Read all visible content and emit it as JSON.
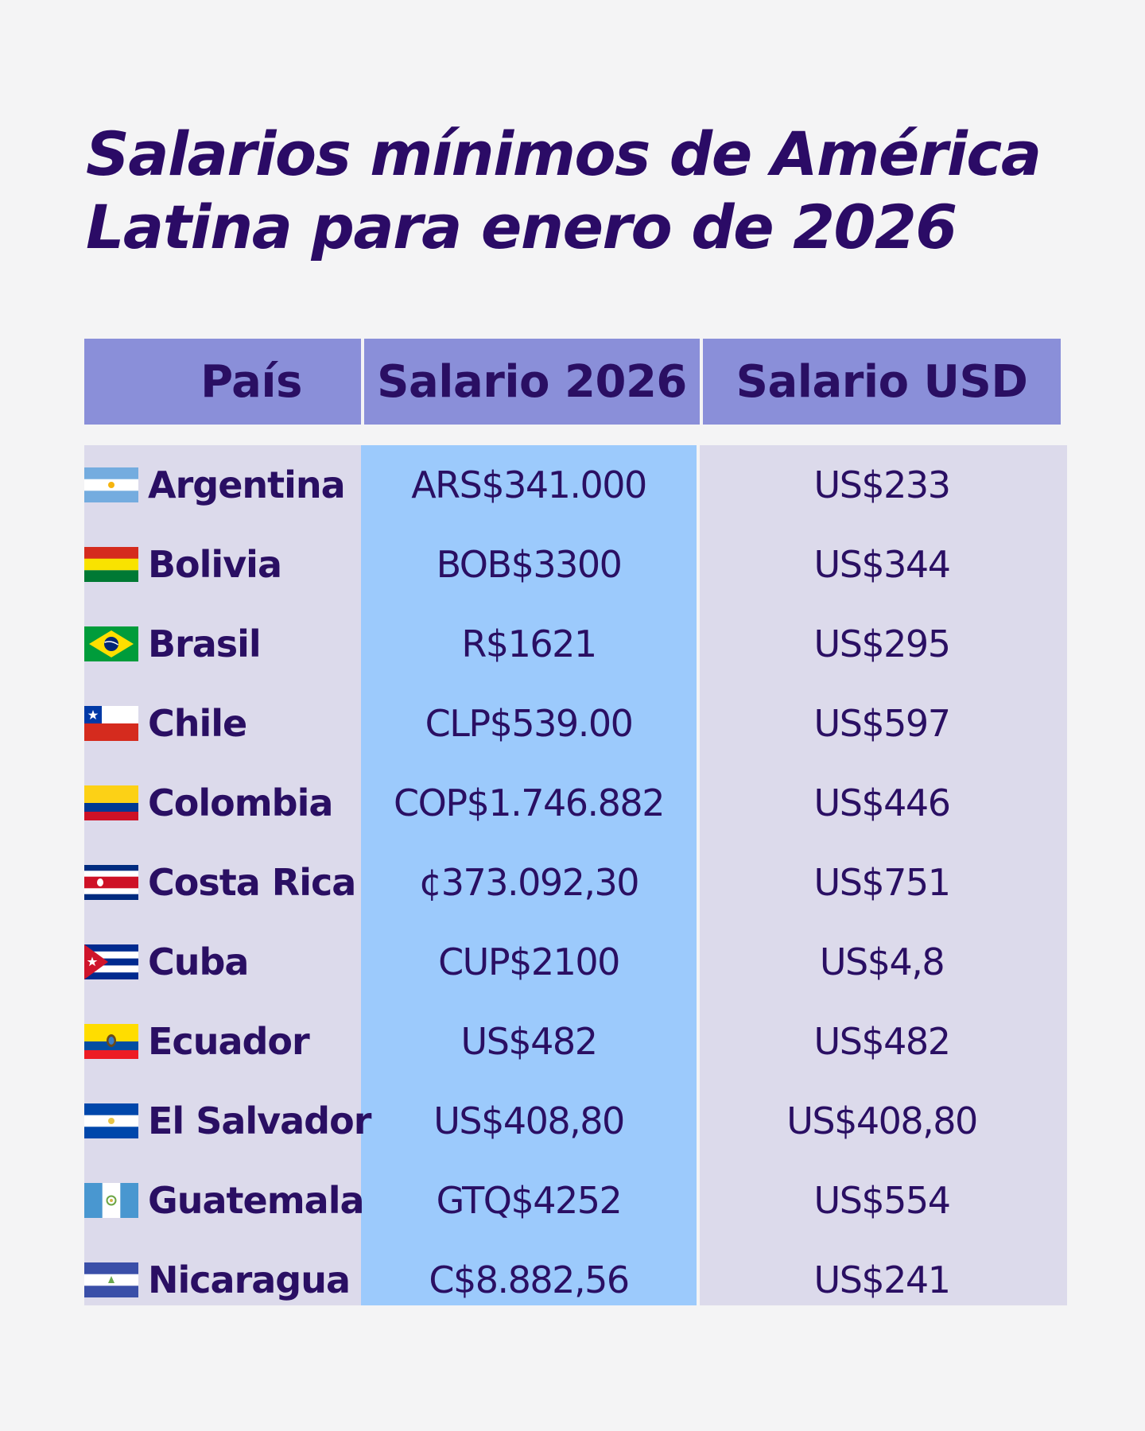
{
  "title": {
    "line1": "Salarios mínimos de América",
    "line2": "Latina para enero de 2026"
  },
  "table": {
    "headers": {
      "country": "País",
      "local": "Salario 2026",
      "usd": "Salario USD"
    },
    "rows": [
      {
        "flag": "argentina-flag-icon",
        "country": "Argentina",
        "local": "ARS$341.000",
        "usd": "US$233"
      },
      {
        "flag": "bolivia-flag-icon",
        "country": "Bolivia",
        "local": "BOB$3300",
        "usd": "US$344"
      },
      {
        "flag": "brazil-flag-icon",
        "country": "Brasil",
        "local": "R$1621",
        "usd": "US$295"
      },
      {
        "flag": "chile-flag-icon",
        "country": "Chile",
        "local": "CLP$539.00",
        "usd": "US$597"
      },
      {
        "flag": "colombia-flag-icon",
        "country": "Colombia",
        "local": "COP$1.746.882",
        "usd": "US$446"
      },
      {
        "flag": "costa-rica-flag-icon",
        "country": "Costa Rica",
        "local": "¢373.092,30",
        "usd": "US$751"
      },
      {
        "flag": "cuba-flag-icon",
        "country": "Cuba",
        "local": "CUP$2100",
        "usd": "US$4,8"
      },
      {
        "flag": "ecuador-flag-icon",
        "country": "Ecuador",
        "local": "US$482",
        "usd": "US$482"
      },
      {
        "flag": "el-salvador-flag-icon",
        "country": "El Salvador",
        "local": "US$408,80",
        "usd": "US$408,80"
      },
      {
        "flag": "guatemala-flag-icon",
        "country": "Guatemala",
        "local": "GTQ$4252",
        "usd": "US$554"
      },
      {
        "flag": "nicaragua-flag-icon",
        "country": "Nicaragua",
        "local": "C$8.882,56",
        "usd": "US$241"
      }
    ]
  },
  "colors": {
    "title": "#2b0b66",
    "header_bg": "#8a8fd9",
    "country_col_bg": "#dcdaeb",
    "local_col_bg": "#9ccafc",
    "usd_col_bg": "#dcdaeb",
    "text": "#2a0f63"
  }
}
